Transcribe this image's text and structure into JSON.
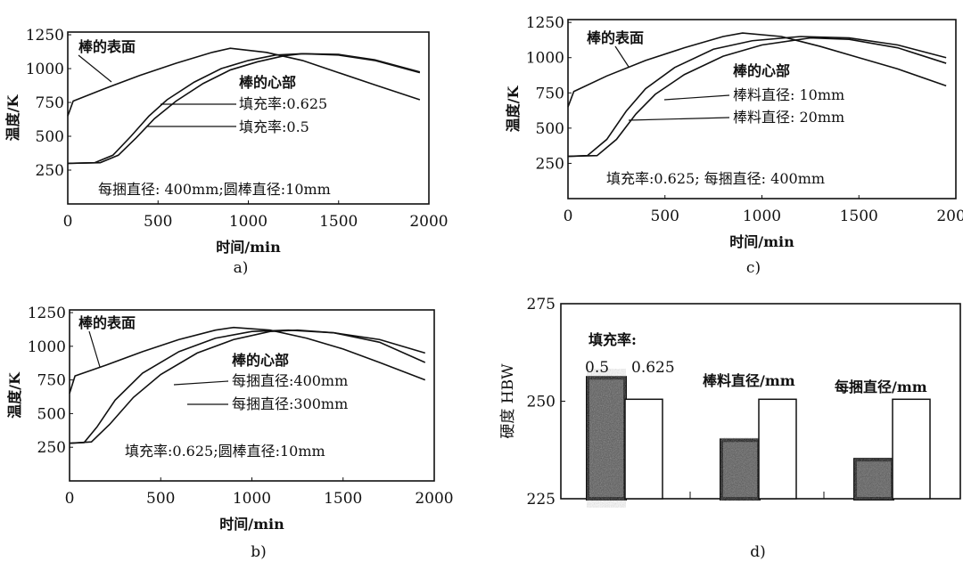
{
  "chart_data": [
    {
      "panel": "a)",
      "type": "line",
      "xlabel": "时间/min",
      "ylabel": "温度/K",
      "xlim": [
        0,
        2000
      ],
      "ylim": [
        0,
        1250
      ],
      "xticks": [
        "0",
        "500",
        "1000",
        "1500",
        "2000"
      ],
      "yticks": [
        "250",
        "500",
        "750",
        "1000",
        "1250"
      ],
      "grid": false,
      "annotations": [
        "棒的表面",
        "棒的心部",
        "填充率:0.625",
        "填充率:0.5",
        "每捆直径: 400mm;圆棒直径:10mm"
      ],
      "series": [
        {
          "name": "棒的表面",
          "points": [
            [
              0,
              650
            ],
            [
              30,
              760
            ],
            [
              200,
              850
            ],
            [
              400,
              950
            ],
            [
              600,
              1040
            ],
            [
              800,
              1120
            ],
            [
              900,
              1150
            ],
            [
              1100,
              1120
            ],
            [
              1300,
              1060
            ],
            [
              1500,
              970
            ],
            [
              1700,
              880
            ],
            [
              1950,
              770
            ]
          ]
        },
        {
          "name": "填充率:0.625",
          "points": [
            [
              0,
              300
            ],
            [
              150,
              305
            ],
            [
              250,
              360
            ],
            [
              350,
              500
            ],
            [
              450,
              650
            ],
            [
              550,
              770
            ],
            [
              700,
              900
            ],
            [
              850,
              1000
            ],
            [
              1000,
              1060
            ],
            [
              1150,
              1100
            ],
            [
              1300,
              1110
            ],
            [
              1500,
              1100
            ],
            [
              1700,
              1060
            ],
            [
              1950,
              970
            ]
          ]
        },
        {
          "name": "填充率:0.5",
          "points": [
            [
              0,
              300
            ],
            [
              180,
              305
            ],
            [
              280,
              360
            ],
            [
              380,
              490
            ],
            [
              480,
              630
            ],
            [
              600,
              760
            ],
            [
              750,
              890
            ],
            [
              900,
              990
            ],
            [
              1050,
              1050
            ],
            [
              1200,
              1095
            ],
            [
              1300,
              1110
            ],
            [
              1500,
              1105
            ],
            [
              1700,
              1065
            ],
            [
              1950,
              975
            ]
          ]
        }
      ]
    },
    {
      "panel": "b)",
      "type": "line",
      "xlabel": "时间/min",
      "ylabel": "温度/K",
      "xlim": [
        0,
        2000
      ],
      "ylim": [
        0,
        1250
      ],
      "xticks": [
        "0",
        "500",
        "1000",
        "1500",
        "2000"
      ],
      "yticks": [
        "250",
        "500",
        "750",
        "1000",
        "1250"
      ],
      "grid": false,
      "annotations": [
        "棒的表面",
        "棒的心部",
        "每捆直径:400mm",
        "每捆直径:300mm",
        "填充率:0.625;圆棒直径:10mm"
      ],
      "series": [
        {
          "name": "棒的表面",
          "points": [
            [
              0,
              650
            ],
            [
              30,
              780
            ],
            [
              200,
              860
            ],
            [
              400,
              960
            ],
            [
              600,
              1050
            ],
            [
              800,
              1120
            ],
            [
              900,
              1140
            ],
            [
              1100,
              1120
            ],
            [
              1300,
              1060
            ],
            [
              1500,
              980
            ],
            [
              1700,
              880
            ],
            [
              1950,
              750
            ]
          ]
        },
        {
          "name": "每捆直径:400mm",
          "points": [
            [
              0,
              280
            ],
            [
              120,
              290
            ],
            [
              220,
              420
            ],
            [
              350,
              620
            ],
            [
              500,
              790
            ],
            [
              700,
              950
            ],
            [
              900,
              1050
            ],
            [
              1100,
              1110
            ],
            [
              1250,
              1120
            ],
            [
              1450,
              1100
            ],
            [
              1700,
              1030
            ],
            [
              1950,
              880
            ]
          ]
        },
        {
          "name": "每捆直径:300mm",
          "points": [
            [
              0,
              280
            ],
            [
              80,
              285
            ],
            [
              150,
              400
            ],
            [
              250,
              600
            ],
            [
              400,
              800
            ],
            [
              600,
              960
            ],
            [
              800,
              1060
            ],
            [
              1000,
              1110
            ],
            [
              1200,
              1120
            ],
            [
              1450,
              1100
            ],
            [
              1700,
              1050
            ],
            [
              1950,
              950
            ]
          ]
        }
      ]
    },
    {
      "panel": "c)",
      "type": "line",
      "xlabel": "时间/min",
      "ylabel": "温度/K",
      "xlim": [
        0,
        2000
      ],
      "ylim": [
        0,
        1250
      ],
      "xticks": [
        "0",
        "500",
        "1000",
        "1500",
        "2000"
      ],
      "yticks": [
        "250",
        "500",
        "750",
        "1000",
        "1250"
      ],
      "grid": false,
      "annotations": [
        "棒的表面",
        "棒的心部",
        "棒料直径: 10mm",
        "棒料直径: 20mm",
        "填充率:0.625; 每捆直径: 400mm"
      ],
      "series": [
        {
          "name": "棒的表面",
          "points": [
            [
              0,
              650
            ],
            [
              30,
              760
            ],
            [
              200,
              870
            ],
            [
              400,
              980
            ],
            [
              600,
              1070
            ],
            [
              800,
              1150
            ],
            [
              900,
              1175
            ],
            [
              1100,
              1150
            ],
            [
              1300,
              1080
            ],
            [
              1500,
              1000
            ],
            [
              1700,
              920
            ],
            [
              1950,
              800
            ]
          ]
        },
        {
          "name": "棒料直径: 10mm",
          "points": [
            [
              0,
              300
            ],
            [
              100,
              305
            ],
            [
              200,
              420
            ],
            [
              300,
              620
            ],
            [
              400,
              780
            ],
            [
              550,
              930
            ],
            [
              750,
              1060
            ],
            [
              950,
              1120
            ],
            [
              1200,
              1150
            ],
            [
              1450,
              1140
            ],
            [
              1700,
              1090
            ],
            [
              1950,
              1000
            ]
          ]
        },
        {
          "name": "棒料直径: 20mm",
          "points": [
            [
              0,
              300
            ],
            [
              150,
              305
            ],
            [
              250,
              420
            ],
            [
              350,
              600
            ],
            [
              450,
              740
            ],
            [
              600,
              880
            ],
            [
              800,
              1010
            ],
            [
              1000,
              1090
            ],
            [
              1250,
              1140
            ],
            [
              1450,
              1130
            ],
            [
              1700,
              1070
            ],
            [
              1950,
              960
            ]
          ]
        }
      ]
    },
    {
      "panel": "d)",
      "type": "bar",
      "ylabel": "硬度 HBW",
      "ylim": [
        225,
        275
      ],
      "yticks": [
        "225",
        "250",
        "275"
      ],
      "grid": false,
      "group_labels": [
        "填充率:",
        "棒料直径/mm",
        "每捆直径/mm"
      ],
      "bar_labels": [
        "0.5",
        "0.625"
      ],
      "groups": [
        {
          "label": "填充率:",
          "values": [
            256,
            250.5
          ]
        },
        {
          "label": "棒料直径/mm",
          "values": [
            240,
            250.5
          ]
        },
        {
          "label": "每捆直径/mm",
          "values": [
            235,
            250.5
          ]
        }
      ],
      "colors": {
        "dark_bar": "#555555",
        "light_bar": "#ffffff"
      }
    }
  ]
}
